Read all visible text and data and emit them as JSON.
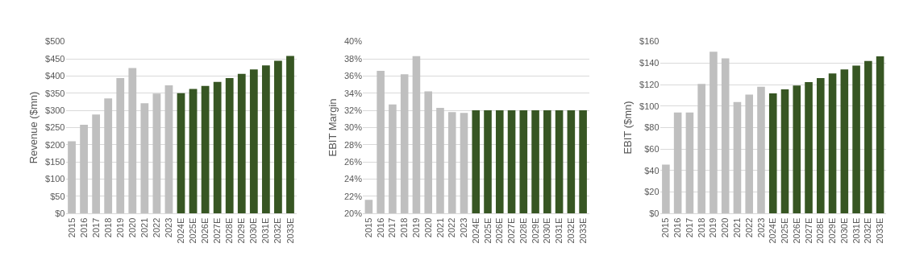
{
  "chart_data": [
    {
      "type": "bar",
      "ylabel": "Revenue ($mn)",
      "categories": [
        "2015",
        "2016",
        "2017",
        "2018",
        "2019",
        "2020",
        "2021",
        "2022",
        "2023",
        "2024E",
        "2025E",
        "2026E",
        "2027E",
        "2028E",
        "2029E",
        "2030E",
        "2031E",
        "2032E",
        "2033E"
      ],
      "values": [
        210,
        258,
        288,
        335,
        394,
        423,
        321,
        349,
        373,
        350,
        362,
        371,
        383,
        394,
        406,
        419,
        431,
        444,
        458
      ],
      "colors": [
        "#bfbfbf",
        "#bfbfbf",
        "#bfbfbf",
        "#bfbfbf",
        "#bfbfbf",
        "#bfbfbf",
        "#bfbfbf",
        "#bfbfbf",
        "#bfbfbf",
        "#375623",
        "#375623",
        "#375623",
        "#375623",
        "#375623",
        "#375623",
        "#375623",
        "#375623",
        "#375623",
        "#375623"
      ],
      "ylim": [
        0,
        500
      ],
      "yticks": [
        {
          "value": 0,
          "label": "$0"
        },
        {
          "value": 50,
          "label": "$50"
        },
        {
          "value": 100,
          "label": "$100"
        },
        {
          "value": 150,
          "label": "$150"
        },
        {
          "value": 200,
          "label": "$200"
        },
        {
          "value": 250,
          "label": "$250"
        },
        {
          "value": 300,
          "label": "$300"
        },
        {
          "value": 350,
          "label": "$350"
        },
        {
          "value": 400,
          "label": "$400"
        },
        {
          "value": 450,
          "label": "$450"
        },
        {
          "value": 500,
          "label": "$500"
        }
      ],
      "grid": "y"
    },
    {
      "type": "bar",
      "ylabel": "EBIT Margin",
      "categories": [
        "2015",
        "2016",
        "2017",
        "2018",
        "2019",
        "2020",
        "2021",
        "2022",
        "2023",
        "2024E",
        "2025E",
        "2026E",
        "2027E",
        "2028E",
        "2029E",
        "2030E",
        "2031E",
        "2032E",
        "2033E"
      ],
      "values": [
        21.6,
        36.6,
        32.7,
        36.2,
        38.3,
        34.2,
        32.3,
        31.8,
        31.7,
        32,
        32,
        32,
        32,
        32,
        32,
        32,
        32,
        32,
        32
      ],
      "colors": [
        "#bfbfbf",
        "#bfbfbf",
        "#bfbfbf",
        "#bfbfbf",
        "#bfbfbf",
        "#bfbfbf",
        "#bfbfbf",
        "#bfbfbf",
        "#bfbfbf",
        "#375623",
        "#375623",
        "#375623",
        "#375623",
        "#375623",
        "#375623",
        "#375623",
        "#375623",
        "#375623",
        "#375623"
      ],
      "ylim": [
        20,
        40
      ],
      "yticks": [
        {
          "value": 20,
          "label": "20%"
        },
        {
          "value": 22,
          "label": "22%"
        },
        {
          "value": 24,
          "label": "24%"
        },
        {
          "value": 26,
          "label": "26%"
        },
        {
          "value": 28,
          "label": "28%"
        },
        {
          "value": 30,
          "label": "30%"
        },
        {
          "value": 32,
          "label": "32%"
        },
        {
          "value": 34,
          "label": "34%"
        },
        {
          "value": 36,
          "label": "36%"
        },
        {
          "value": 38,
          "label": "38%"
        },
        {
          "value": 40,
          "label": "40%"
        }
      ],
      "grid": "y"
    },
    {
      "type": "bar",
      "ylabel": "EBIT ($mn)",
      "categories": [
        "2015",
        "2016",
        "2017",
        "2018",
        "2019",
        "2020",
        "2021",
        "2022",
        "2023",
        "2024E",
        "2025E",
        "2026E",
        "2027E",
        "2028E",
        "2029E",
        "2030E",
        "2031E",
        "2032E",
        "2033E"
      ],
      "values": [
        45.5,
        94,
        94,
        120.6,
        150.6,
        144.4,
        103.8,
        110.6,
        118,
        111.8,
        115.5,
        119.2,
        122.3,
        126,
        130.3,
        134,
        137.6,
        142,
        146.3
      ],
      "colors": [
        "#bfbfbf",
        "#bfbfbf",
        "#bfbfbf",
        "#bfbfbf",
        "#bfbfbf",
        "#bfbfbf",
        "#bfbfbf",
        "#bfbfbf",
        "#bfbfbf",
        "#375623",
        "#375623",
        "#375623",
        "#375623",
        "#375623",
        "#375623",
        "#375623",
        "#375623",
        "#375623",
        "#375623"
      ],
      "ylim": [
        0,
        160
      ],
      "yticks": [
        {
          "value": 0,
          "label": "$0"
        },
        {
          "value": 20,
          "label": "$20"
        },
        {
          "value": 40,
          "label": "$40"
        },
        {
          "value": 60,
          "label": "$60"
        },
        {
          "value": 80,
          "label": "$80"
        },
        {
          "value": 100,
          "label": "$100"
        },
        {
          "value": 120,
          "label": "$120"
        },
        {
          "value": 140,
          "label": "$140"
        },
        {
          "value": 160,
          "label": "$160"
        }
      ],
      "grid": "y"
    }
  ]
}
